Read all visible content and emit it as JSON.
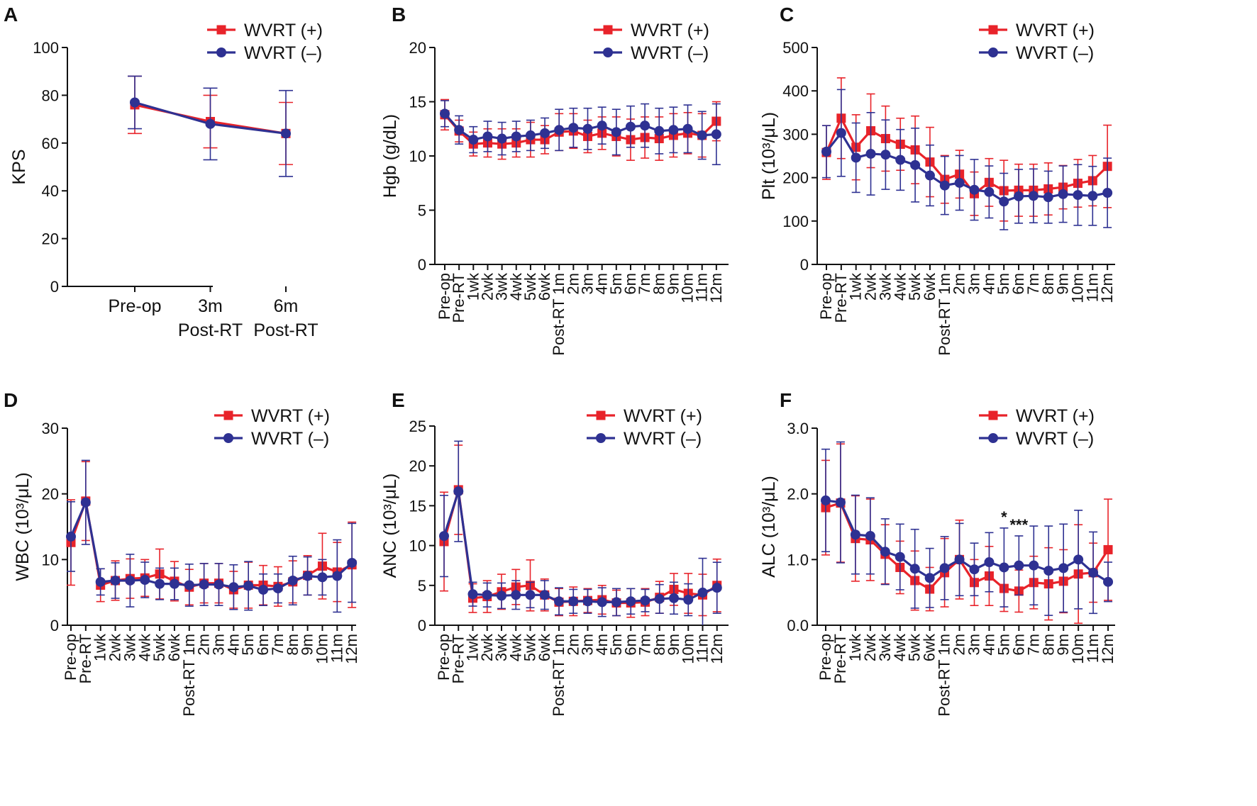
{
  "colors": {
    "wvrt_pos": "#e8232a",
    "wvrt_neg": "#2e3192",
    "axis": "#111111"
  },
  "legend": {
    "pos_label": "WVRT (+)",
    "neg_label": "WVRT (–)"
  },
  "chart_data": [
    {
      "panel": "A",
      "type": "line",
      "ylabel": "KPS",
      "ylim": [
        0,
        100
      ],
      "yticks": [
        "0",
        "20",
        "40",
        "60",
        "80",
        "100"
      ],
      "categories": [
        [
          "Pre-op"
        ],
        [
          "3m",
          "Post-RT"
        ],
        [
          "6m",
          "Post-RT"
        ]
      ],
      "xlabel_style": "horizontal",
      "series": [
        {
          "name": "WVRT (+)",
          "values": [
            76,
            69,
            64
          ],
          "err": [
            12,
            11,
            13
          ]
        },
        {
          "name": "WVRT (–)",
          "values": [
            77,
            68,
            64
          ],
          "err": [
            11,
            15,
            18
          ]
        }
      ],
      "legend_position": "top-right"
    },
    {
      "panel": "B",
      "type": "line",
      "ylabel": "Hgb (g/dL)",
      "ylim": [
        0,
        20
      ],
      "yticks": [
        "0",
        "5",
        "10",
        "15",
        "20"
      ],
      "categories": [
        "Pre-op",
        "Pre-RT",
        "1wk",
        "2wk",
        "3wk",
        "4wk",
        "5wk",
        "6wk",
        "Post-RT 1m",
        "2m",
        "3m",
        "4m",
        "5m",
        "6m",
        "7m",
        "8m",
        "9m",
        "10m",
        "11m",
        "12m"
      ],
      "xlabel_style": "rotated",
      "series": [
        {
          "name": "WVRT (+)",
          "values": [
            13.8,
            12.3,
            11.1,
            11.2,
            11.1,
            11.2,
            11.5,
            11.5,
            12.2,
            12.3,
            11.8,
            12.1,
            11.8,
            11.5,
            11.7,
            11.6,
            11.9,
            12.1,
            11.9,
            13.2
          ],
          "err": [
            1.4,
            1.0,
            1.1,
            1.3,
            1.4,
            1.3,
            1.6,
            1.3,
            1.7,
            1.6,
            1.5,
            1.5,
            1.8,
            1.9,
            1.9,
            2.0,
            2.0,
            1.9,
            2.0,
            1.8
          ]
        },
        {
          "name": "WVRT (–)",
          "values": [
            13.9,
            12.4,
            11.5,
            11.8,
            11.6,
            11.8,
            11.9,
            12.1,
            12.4,
            12.6,
            12.5,
            12.8,
            12.2,
            12.7,
            12.8,
            12.3,
            12.4,
            12.5,
            11.9,
            12.0
          ],
          "err": [
            1.2,
            1.3,
            1.2,
            1.4,
            1.5,
            1.4,
            1.4,
            1.4,
            1.9,
            1.8,
            1.9,
            1.7,
            2.1,
            1.9,
            2.0,
            2.1,
            2.1,
            2.2,
            2.2,
            2.8
          ]
        }
      ],
      "legend_position": "top-right"
    },
    {
      "panel": "C",
      "type": "line",
      "ylabel": "Plt (10³/μL)",
      "ylim": [
        0,
        500
      ],
      "yticks": [
        "0",
        "100",
        "200",
        "300",
        "400",
        "500"
      ],
      "categories": [
        "Pre-op",
        "Pre-RT",
        "1wk",
        "2wk",
        "3wk",
        "4wk",
        "5wk",
        "6wk",
        "Post-RT 1m",
        "2m",
        "3m",
        "4m",
        "5m",
        "6m",
        "7m",
        "8m",
        "9m",
        "10m",
        "11m",
        "12m"
      ],
      "xlabel_style": "rotated",
      "series": [
        {
          "name": "WVRT (+)",
          "values": [
            258,
            337,
            270,
            308,
            290,
            277,
            264,
            236,
            196,
            208,
            163,
            189,
            170,
            171,
            171,
            174,
            178,
            187,
            193,
            226
          ],
          "err": [
            62,
            93,
            75,
            85,
            75,
            60,
            78,
            80,
            55,
            55,
            50,
            55,
            70,
            60,
            60,
            60,
            50,
            55,
            58,
            95
          ]
        },
        {
          "name": "WVRT (–)",
          "values": [
            260,
            303,
            246,
            255,
            253,
            241,
            229,
            205,
            182,
            188,
            172,
            167,
            145,
            157,
            158,
            155,
            162,
            160,
            158,
            165
          ],
          "err": [
            60,
            100,
            80,
            95,
            80,
            70,
            85,
            70,
            67,
            63,
            70,
            60,
            65,
            62,
            62,
            60,
            65,
            70,
            68,
            80
          ]
        }
      ],
      "legend_position": "top-right"
    },
    {
      "panel": "D",
      "type": "line",
      "ylabel": "WBC (10³/μL)",
      "ylim": [
        0,
        30
      ],
      "yticks": [
        "0",
        "10",
        "20",
        "30"
      ],
      "categories": [
        "Pre-op",
        "Pre-RT",
        "1wk",
        "2wk",
        "3wk",
        "4wk",
        "5wk",
        "6wk",
        "Post-RT 1m",
        "2m",
        "3m",
        "4m",
        "5m",
        "6m",
        "7m",
        "8m",
        "9m",
        "10m",
        "11m",
        "12m"
      ],
      "xlabel_style": "rotated",
      "series": [
        {
          "name": "WVRT (+)",
          "values": [
            12.6,
            18.9,
            6.1,
            6.8,
            7.1,
            7.2,
            7.8,
            6.7,
            5.8,
            6.4,
            6.4,
            5.4,
            6.1,
            6.1,
            5.9,
            6.6,
            7.6,
            9.0,
            8.1,
            9.2
          ],
          "err": [
            6.5,
            6.0,
            2.5,
            3.0,
            3.0,
            2.8,
            3.8,
            3.0,
            2.7,
            3.0,
            3.0,
            2.8,
            3.5,
            3.0,
            3.0,
            3.2,
            3.0,
            5.0,
            4.5,
            6.5
          ]
        },
        {
          "name": "WVRT (–)",
          "values": [
            13.5,
            18.7,
            6.6,
            6.8,
            6.8,
            6.9,
            6.3,
            6.3,
            6.1,
            6.2,
            6.2,
            5.8,
            6.0,
            5.4,
            5.6,
            6.8,
            7.5,
            7.3,
            7.5,
            9.5
          ],
          "err": [
            5.3,
            6.4,
            2.0,
            2.7,
            4.0,
            2.7,
            2.4,
            2.4,
            3.2,
            3.2,
            3.2,
            3.4,
            3.7,
            2.4,
            2.2,
            3.7,
            2.9,
            2.7,
            5.5,
            6.0
          ]
        }
      ],
      "legend_position": "top-right"
    },
    {
      "panel": "E",
      "type": "line",
      "ylabel": "ANC (10³/μL)",
      "ylim": [
        0,
        25
      ],
      "yticks": [
        "0",
        "5",
        "10",
        "15",
        "20",
        "25"
      ],
      "categories": [
        "Pre-op",
        "Pre-RT",
        "1wk",
        "2wk",
        "3wk",
        "4wk",
        "5wk",
        "6wk",
        "Post-RT 1m",
        "2m",
        "3m",
        "4m",
        "5m",
        "6m",
        "7m",
        "8m",
        "9m",
        "10m",
        "11m",
        "12m"
      ],
      "xlabel_style": "rotated",
      "series": [
        {
          "name": "WVRT (+)",
          "values": [
            10.5,
            17.0,
            3.4,
            3.6,
            4.2,
            4.8,
            5.0,
            3.8,
            2.9,
            3.0,
            3.1,
            3.2,
            2.8,
            2.8,
            2.9,
            3.5,
            4.5,
            4.0,
            3.8,
            5.0
          ],
          "err": [
            6.2,
            5.6,
            1.8,
            2.0,
            2.2,
            2.2,
            3.2,
            2.0,
            1.7,
            1.8,
            1.5,
            1.8,
            1.6,
            1.8,
            1.7,
            2.0,
            2.0,
            2.5,
            2.6,
            3.3
          ]
        },
        {
          "name": "WVRT (–)",
          "values": [
            11.2,
            16.8,
            3.9,
            3.8,
            3.7,
            3.8,
            3.8,
            3.8,
            3.0,
            3.0,
            3.0,
            2.9,
            2.9,
            3.0,
            3.1,
            3.3,
            3.4,
            3.2,
            4.1,
            4.7
          ],
          "err": [
            5.1,
            6.3,
            1.5,
            1.5,
            1.6,
            1.8,
            1.6,
            1.8,
            1.7,
            1.5,
            1.5,
            1.8,
            1.7,
            1.6,
            1.4,
            1.8,
            2.0,
            2.0,
            4.3,
            3.2
          ]
        }
      ],
      "legend_position": "top-right"
    },
    {
      "panel": "F",
      "type": "line",
      "ylabel": "ALC (10³/μL)",
      "ylim": [
        0,
        3
      ],
      "yticks": [
        "0.0",
        "1.0",
        "2.0",
        "3.0"
      ],
      "categories": [
        "Pre-op",
        "Pre-RT",
        "1wk",
        "2wk",
        "3wk",
        "4wk",
        "5wk",
        "6wk",
        "Post-RT 1m",
        "2m",
        "3m",
        "4m",
        "5m",
        "6m",
        "7m",
        "8m",
        "9m",
        "10m",
        "11m",
        "12m"
      ],
      "xlabel_style": "rotated",
      "series": [
        {
          "name": "WVRT (+)",
          "values": [
            1.79,
            1.86,
            1.32,
            1.3,
            1.08,
            0.88,
            0.68,
            0.55,
            0.8,
            1.0,
            0.65,
            0.75,
            0.56,
            0.52,
            0.65,
            0.63,
            0.67,
            0.78,
            0.8,
            1.15
          ],
          "err": [
            0.72,
            0.9,
            0.65,
            0.62,
            0.45,
            0.4,
            0.45,
            0.33,
            0.52,
            0.6,
            0.35,
            0.45,
            0.35,
            0.32,
            0.4,
            0.55,
            0.48,
            0.75,
            0.45,
            0.77
          ]
        },
        {
          "name": "WVRT (–)",
          "values": [
            1.9,
            1.87,
            1.38,
            1.36,
            1.12,
            1.04,
            0.86,
            0.72,
            0.87,
            1.0,
            0.85,
            0.96,
            0.88,
            0.91,
            0.91,
            0.83,
            0.87,
            1.0,
            0.8,
            0.66
          ],
          "err": [
            0.78,
            0.92,
            0.6,
            0.58,
            0.5,
            0.5,
            0.6,
            0.45,
            0.48,
            0.55,
            0.4,
            0.45,
            0.6,
            0.45,
            0.6,
            0.68,
            0.67,
            0.75,
            0.62,
            0.3
          ]
        }
      ],
      "annotations": [
        {
          "text": "*",
          "category": "5m"
        },
        {
          "text": "***",
          "category": "6m"
        }
      ],
      "legend_position": "top-right"
    }
  ]
}
